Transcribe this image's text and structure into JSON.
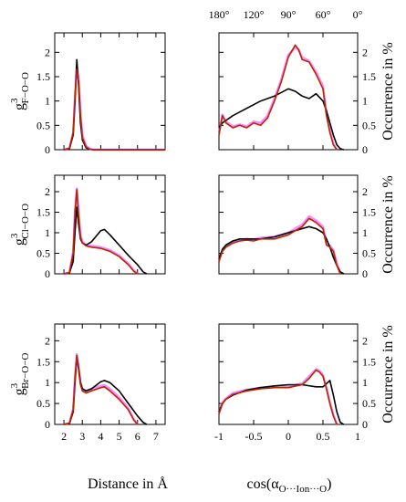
{
  "colors": {
    "black_series": "#000000",
    "red_series": "#b22a00",
    "pink_series": "#ff55ff"
  },
  "texts": {
    "xlabel_left": "Distance in Å",
    "xlabel_right_main": "cos(α",
    "xlabel_right_sub": "O···Ion···O",
    "xlabel_right_close": ")",
    "ylabel_right": "Occurrence in %",
    "ylabel_g": "g",
    "ylabel_sup": "3",
    "rows": [
      "F−O−O",
      "Cl−O−O",
      "Br−O−O"
    ]
  },
  "chart_data": [
    {
      "type": "line",
      "panel": "F-O-O distance",
      "xlim": [
        1.5,
        7.5
      ],
      "ylim": [
        0,
        2.4
      ],
      "series": [
        {
          "color": "black",
          "x": [
            2.0,
            2.3,
            2.5,
            2.6,
            2.7,
            2.8,
            2.9,
            3.0,
            3.2,
            3.4,
            3.6,
            4.0,
            5.0,
            6.0,
            7.5
          ],
          "y": [
            0,
            0.02,
            0.3,
            1.0,
            1.85,
            1.3,
            0.55,
            0.2,
            0.04,
            0.01,
            0,
            0,
            0,
            0,
            0
          ]
        },
        {
          "color": "red",
          "x": [
            2.0,
            2.3,
            2.5,
            2.6,
            2.7,
            2.8,
            2.9,
            3.0,
            3.2,
            3.4,
            3.6,
            4.0,
            5.0,
            6.0,
            7.5
          ],
          "y": [
            0,
            0.03,
            0.35,
            1.1,
            1.65,
            1.4,
            0.7,
            0.25,
            0.06,
            0.01,
            0,
            0,
            0,
            0,
            0
          ]
        },
        {
          "color": "pink",
          "x": [
            2.0,
            2.3,
            2.5,
            2.6,
            2.7,
            2.8,
            2.9,
            3.0,
            3.2,
            3.4,
            3.6,
            4.0,
            5.0,
            6.0,
            7.5
          ],
          "y": [
            0,
            0.03,
            0.35,
            1.1,
            1.7,
            1.45,
            0.75,
            0.3,
            0.08,
            0.02,
            0,
            0,
            0,
            0,
            0
          ]
        }
      ]
    },
    {
      "type": "line",
      "panel": "F-O-O angle",
      "xlim": [
        -1,
        1
      ],
      "ylim": [
        0,
        2.4
      ],
      "series": [
        {
          "color": "black",
          "x": [
            -1,
            -0.95,
            -0.9,
            -0.8,
            -0.6,
            -0.4,
            -0.2,
            0,
            0.1,
            0.2,
            0.3,
            0.4,
            0.5,
            0.55,
            0.6,
            0.65,
            0.7,
            0.75,
            0.8
          ],
          "y": [
            0.45,
            0.55,
            0.6,
            0.7,
            0.85,
            1.0,
            1.1,
            1.25,
            1.2,
            1.1,
            1.05,
            1.15,
            1.0,
            0.8,
            0.55,
            0.3,
            0.1,
            0.02,
            0
          ]
        },
        {
          "color": "red",
          "x": [
            -1,
            -0.95,
            -0.9,
            -0.8,
            -0.7,
            -0.6,
            -0.5,
            -0.4,
            -0.3,
            -0.2,
            -0.1,
            0,
            0.1,
            0.15,
            0.2,
            0.3,
            0.4,
            0.5,
            0.55,
            0.6,
            0.65,
            0.7
          ],
          "y": [
            0.3,
            0.7,
            0.55,
            0.45,
            0.5,
            0.45,
            0.55,
            0.5,
            0.65,
            1.0,
            1.4,
            1.9,
            2.15,
            2.05,
            1.85,
            1.8,
            1.55,
            1.25,
            0.7,
            0.35,
            0.1,
            0
          ]
        },
        {
          "color": "pink",
          "x": [
            -1,
            -0.95,
            -0.9,
            -0.8,
            -0.7,
            -0.6,
            -0.5,
            -0.4,
            -0.3,
            -0.2,
            -0.1,
            0,
            0.1,
            0.15,
            0.2,
            0.3,
            0.4,
            0.5,
            0.55,
            0.6,
            0.65,
            0.7
          ],
          "y": [
            0.35,
            0.72,
            0.58,
            0.48,
            0.52,
            0.48,
            0.58,
            0.55,
            0.7,
            1.05,
            1.45,
            1.95,
            2.1,
            2.05,
            1.9,
            1.82,
            1.6,
            1.3,
            0.75,
            0.4,
            0.12,
            0
          ]
        }
      ]
    },
    {
      "type": "line",
      "panel": "Cl-O-O distance",
      "xlim": [
        1.5,
        7.5
      ],
      "ylim": [
        0,
        2.4
      ],
      "series": [
        {
          "color": "black",
          "x": [
            2.0,
            2.3,
            2.5,
            2.6,
            2.7,
            2.8,
            2.9,
            3.0,
            3.2,
            3.5,
            4.0,
            4.2,
            4.5,
            5.0,
            5.5,
            6.0,
            6.3,
            6.5
          ],
          "y": [
            0,
            0.02,
            0.3,
            1.0,
            1.62,
            1.2,
            0.85,
            0.75,
            0.7,
            0.78,
            1.05,
            1.08,
            0.95,
            0.7,
            0.45,
            0.22,
            0.05,
            0
          ]
        },
        {
          "color": "red",
          "x": [
            2.0,
            2.3,
            2.5,
            2.6,
            2.7,
            2.8,
            2.9,
            3.0,
            3.2,
            3.5,
            4.0,
            4.5,
            5.0,
            5.5,
            5.8,
            6.0
          ],
          "y": [
            0,
            0.03,
            0.5,
            1.5,
            2.05,
            1.4,
            0.9,
            0.75,
            0.68,
            0.65,
            0.62,
            0.55,
            0.42,
            0.22,
            0.06,
            0
          ]
        },
        {
          "color": "pink",
          "x": [
            2.0,
            2.3,
            2.5,
            2.6,
            2.7,
            2.8,
            2.9,
            3.0,
            3.2,
            3.5,
            4.0,
            4.5,
            5.0,
            5.5,
            5.8,
            6.0
          ],
          "y": [
            0,
            0.03,
            0.55,
            1.55,
            2.08,
            1.45,
            0.95,
            0.78,
            0.7,
            0.68,
            0.65,
            0.58,
            0.45,
            0.25,
            0.08,
            0
          ]
        }
      ]
    },
    {
      "type": "line",
      "panel": "Cl-O-O angle",
      "xlim": [
        -1,
        1
      ],
      "ylim": [
        0,
        2.4
      ],
      "series": [
        {
          "color": "black",
          "x": [
            -1,
            -0.95,
            -0.9,
            -0.8,
            -0.7,
            -0.6,
            -0.5,
            -0.4,
            -0.2,
            0,
            0.2,
            0.3,
            0.4,
            0.5,
            0.55,
            0.6,
            0.65,
            0.7,
            0.75,
            0.8
          ],
          "y": [
            0.35,
            0.6,
            0.7,
            0.8,
            0.85,
            0.85,
            0.85,
            0.85,
            0.9,
            1.0,
            1.1,
            1.15,
            1.1,
            1.0,
            0.85,
            0.65,
            0.4,
            0.2,
            0.05,
            0
          ]
        },
        {
          "color": "red",
          "x": [
            -1,
            -0.95,
            -0.9,
            -0.8,
            -0.7,
            -0.6,
            -0.5,
            -0.4,
            -0.2,
            0,
            0.2,
            0.3,
            0.35,
            0.4,
            0.5,
            0.55,
            0.6,
            0.65,
            0.7,
            0.75
          ],
          "y": [
            0.3,
            0.55,
            0.65,
            0.75,
            0.8,
            0.82,
            0.8,
            0.85,
            0.85,
            0.95,
            1.15,
            1.35,
            1.3,
            1.25,
            1.1,
            0.7,
            0.65,
            0.55,
            0.2,
            0
          ]
        },
        {
          "color": "pink",
          "x": [
            -1,
            -0.95,
            -0.9,
            -0.8,
            -0.7,
            -0.6,
            -0.5,
            -0.4,
            -0.2,
            0,
            0.2,
            0.3,
            0.35,
            0.4,
            0.5,
            0.55,
            0.6,
            0.65,
            0.7,
            0.75
          ],
          "y": [
            0.32,
            0.58,
            0.68,
            0.78,
            0.83,
            0.85,
            0.83,
            0.88,
            0.9,
            1.0,
            1.2,
            1.4,
            1.35,
            1.3,
            1.15,
            0.75,
            0.68,
            0.58,
            0.25,
            0
          ]
        }
      ]
    },
    {
      "type": "line",
      "panel": "Br-O-O distance",
      "xlim": [
        1.5,
        7.5
      ],
      "ylim": [
        0,
        2.4
      ],
      "series": [
        {
          "color": "black",
          "x": [
            2.0,
            2.3,
            2.5,
            2.6,
            2.7,
            2.8,
            2.9,
            3.0,
            3.2,
            3.5,
            4.0,
            4.2,
            4.5,
            5.0,
            5.5,
            6.0,
            6.3,
            6.5
          ],
          "y": [
            0,
            0.02,
            0.3,
            1.0,
            1.62,
            1.35,
            1.0,
            0.85,
            0.8,
            0.85,
            1.02,
            1.05,
            1.0,
            0.8,
            0.5,
            0.2,
            0.05,
            0
          ]
        },
        {
          "color": "red",
          "x": [
            2.0,
            2.3,
            2.5,
            2.6,
            2.7,
            2.8,
            2.9,
            3.0,
            3.2,
            3.5,
            4.0,
            4.2,
            4.5,
            5.0,
            5.5,
            5.8,
            6.0
          ],
          "y": [
            0,
            0.03,
            0.35,
            1.1,
            1.65,
            1.3,
            0.95,
            0.8,
            0.75,
            0.8,
            0.88,
            0.9,
            0.8,
            0.6,
            0.35,
            0.1,
            0
          ]
        },
        {
          "color": "pink",
          "x": [
            2.0,
            2.3,
            2.5,
            2.6,
            2.7,
            2.8,
            2.9,
            3.0,
            3.2,
            3.5,
            4.0,
            4.2,
            4.5,
            5.0,
            5.5,
            5.8,
            6.0
          ],
          "y": [
            0,
            0.03,
            0.38,
            1.15,
            1.68,
            1.35,
            1.0,
            0.85,
            0.8,
            0.85,
            0.92,
            0.94,
            0.85,
            0.65,
            0.38,
            0.12,
            0
          ]
        }
      ]
    },
    {
      "type": "line",
      "panel": "Br-O-O angle",
      "xlim": [
        -1,
        1
      ],
      "ylim": [
        0,
        2.4
      ],
      "series": [
        {
          "color": "black",
          "x": [
            -1,
            -0.95,
            -0.9,
            -0.8,
            -0.6,
            -0.4,
            -0.2,
            0,
            0.2,
            0.4,
            0.5,
            0.6,
            0.65,
            0.7,
            0.75,
            0.8
          ],
          "y": [
            0.3,
            0.5,
            0.6,
            0.7,
            0.82,
            0.88,
            0.92,
            0.95,
            0.95,
            0.9,
            0.9,
            1.05,
            0.7,
            0.3,
            0.05,
            0
          ]
        },
        {
          "color": "red",
          "x": [
            -1,
            -0.95,
            -0.9,
            -0.8,
            -0.6,
            -0.4,
            -0.2,
            0,
            0.2,
            0.3,
            0.4,
            0.45,
            0.5,
            0.55,
            0.6,
            0.65,
            0.7
          ],
          "y": [
            0.25,
            0.5,
            0.6,
            0.72,
            0.8,
            0.85,
            0.88,
            0.88,
            0.95,
            1.1,
            1.3,
            1.25,
            1.15,
            0.85,
            0.5,
            0.2,
            0
          ]
        },
        {
          "color": "pink",
          "x": [
            -1,
            -0.95,
            -0.9,
            -0.8,
            -0.6,
            -0.4,
            -0.2,
            0,
            0.2,
            0.3,
            0.4,
            0.45,
            0.5,
            0.55,
            0.6,
            0.65,
            0.7
          ],
          "y": [
            0.28,
            0.52,
            0.62,
            0.75,
            0.83,
            0.88,
            0.9,
            0.9,
            0.98,
            1.15,
            1.32,
            1.28,
            1.18,
            0.88,
            0.52,
            0.22,
            0
          ]
        }
      ]
    }
  ],
  "axes": {
    "y_ticks": [
      "0",
      "0.5",
      "1",
      "1.5",
      "2"
    ],
    "x_ticks_left": [
      "2",
      "3",
      "4",
      "5",
      "6",
      "7"
    ],
    "x_ticks_right": [
      "-1",
      "-0.5",
      "0",
      "0.5",
      "1"
    ],
    "top_ticks": [
      "180°",
      "120°",
      "90°",
      "60°",
      "0°"
    ]
  }
}
